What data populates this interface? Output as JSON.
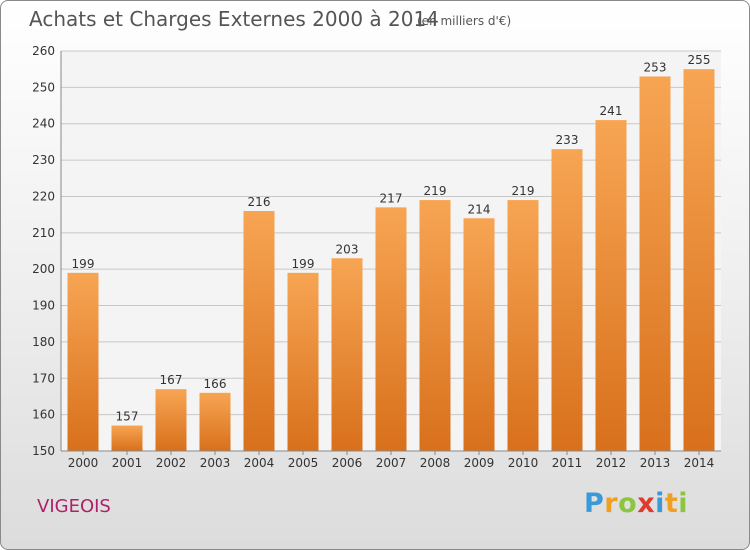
{
  "title": "Achats et Charges Externes 2000 à 2014",
  "subtitle": "(en milliers d'€)",
  "commune": "VIGEOIS",
  "brand": {
    "letters": [
      "P",
      "r",
      "o",
      "x",
      "i",
      "t",
      "i"
    ],
    "colors": [
      "#3a9ad9",
      "#f0a020",
      "#8cc63f",
      "#e03a2f",
      "#3a9ad9",
      "#f0a020",
      "#8cc63f"
    ]
  },
  "colors": {
    "bar_light": "#f7a553",
    "bar_dark": "#d8701c",
    "grid": "#c8c8c8",
    "title": "#555555",
    "commune": "#b0206a"
  },
  "chart_data": {
    "type": "bar",
    "title": "Achats et Charges Externes 2000 à 2014",
    "subtitle": "(en milliers d'€)",
    "categories": [
      "2000",
      "2001",
      "2002",
      "2003",
      "2004",
      "2005",
      "2006",
      "2007",
      "2008",
      "2009",
      "2010",
      "2011",
      "2012",
      "2013",
      "2014"
    ],
    "values": [
      199,
      157,
      167,
      166,
      216,
      199,
      203,
      217,
      219,
      214,
      219,
      233,
      241,
      253,
      255
    ],
    "ylim": [
      150,
      260
    ],
    "yticks": [
      150,
      160,
      170,
      180,
      190,
      200,
      210,
      220,
      230,
      240,
      250,
      260
    ],
    "grid": true,
    "legend": "none",
    "xlabel": "",
    "ylabel": ""
  }
}
